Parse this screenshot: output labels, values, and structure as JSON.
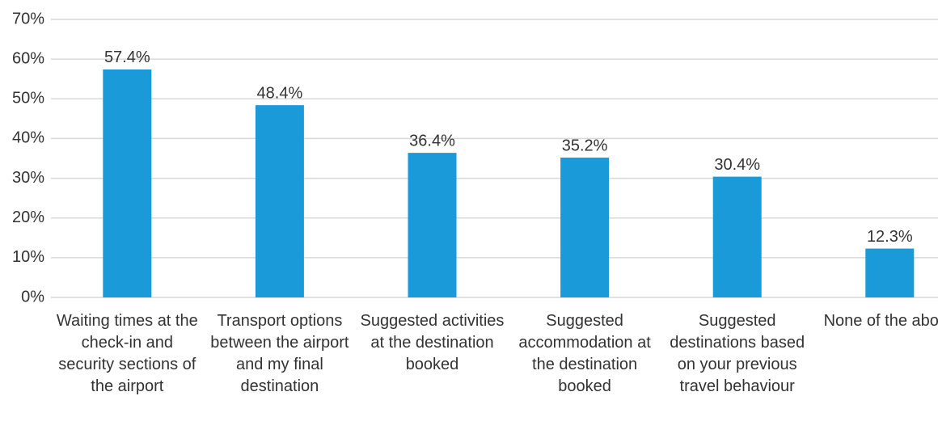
{
  "chart_data": {
    "type": "bar",
    "categories": [
      "Waiting times at the check-in and security sections of the airport",
      "Transport options between the airport and my final destination",
      "Suggested activities at the destination booked",
      "Suggested accommodation at the destination booked",
      "Suggested destinations based on your previous travel behaviour",
      "None of the above"
    ],
    "values": [
      57.4,
      48.4,
      36.4,
      35.2,
      30.4,
      12.3
    ],
    "value_labels": [
      "57.4%",
      "48.4%",
      "36.4%",
      "35.2%",
      "30.4%",
      "12.3%"
    ],
    "color": "#1a9ad9",
    "ylim": [
      0,
      70
    ],
    "yticks": [
      {
        "value": 0,
        "label": "0%"
      },
      {
        "value": 10,
        "label": "10%"
      },
      {
        "value": 20,
        "label": "20%"
      },
      {
        "value": 30,
        "label": "30%"
      },
      {
        "value": 40,
        "label": "40%"
      },
      {
        "value": 50,
        "label": "50%"
      },
      {
        "value": 60,
        "label": "60%"
      },
      {
        "value": 70,
        "label": "70%"
      }
    ],
    "grid": true
  }
}
